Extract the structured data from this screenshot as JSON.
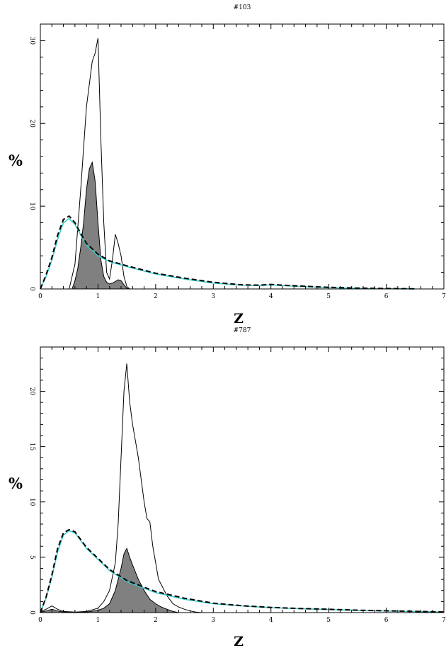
{
  "colors": {
    "dashed_curve": "#000000",
    "cyan_curve": "#33cccc",
    "filled_area": "#808080",
    "thin_curve": "#000000"
  },
  "chart_data": [
    {
      "type": "area",
      "title": "#103",
      "xlabel": "z",
      "ylabel": "%",
      "xlim": [
        0,
        7
      ],
      "ylim": [
        0,
        32
      ],
      "xticks": [
        0,
        1,
        2,
        3,
        4,
        5,
        6,
        7
      ],
      "xtick_labels": [
        "0",
        "1",
        "2",
        "3",
        "4",
        "5",
        "6",
        "7"
      ],
      "yticks": [
        0,
        10,
        20,
        30
      ],
      "ytick_labels": [
        "0",
        "10",
        "20",
        "30"
      ],
      "grid": false,
      "series": [
        {
          "style": "thin-line",
          "x": [
            0.5,
            0.6,
            0.7,
            0.8,
            0.9,
            0.95,
            1.0,
            1.05,
            1.1,
            1.15,
            1.2,
            1.25,
            1.3,
            1.35,
            1.4,
            1.45,
            1.5,
            1.55
          ],
          "y": [
            0,
            3,
            12,
            22,
            27.5,
            28.5,
            30.3,
            18,
            8,
            2,
            1.2,
            3.5,
            6.6,
            5.5,
            4,
            1.5,
            0.3,
            0
          ]
        },
        {
          "style": "filled-area",
          "x": [
            0.55,
            0.6,
            0.65,
            0.7,
            0.75,
            0.8,
            0.85,
            0.9,
            0.95,
            1.0,
            1.05,
            1.1,
            1.15,
            1.2,
            1.25,
            1.3,
            1.35,
            1.4,
            1.45,
            1.5,
            1.55
          ],
          "y": [
            0,
            1,
            2.5,
            5,
            8,
            12,
            14.5,
            15.3,
            13,
            8,
            3.5,
            1.5,
            0.8,
            0.6,
            0.7,
            0.9,
            1.1,
            1.0,
            0.5,
            0.1,
            0
          ]
        },
        {
          "style": "cyan-line",
          "x": [
            0,
            0.1,
            0.2,
            0.3,
            0.4,
            0.5,
            0.6,
            0.7,
            0.8,
            1.0,
            1.2,
            1.5,
            2.0,
            2.5,
            3.0,
            3.5,
            3.8,
            4.0,
            4.2,
            4.5,
            5.0,
            5.5,
            6.0,
            6.5
          ],
          "y": [
            0,
            1.5,
            3.5,
            6,
            8,
            8.5,
            7.8,
            6.5,
            5.3,
            4,
            3.3,
            2.7,
            1.8,
            1.2,
            0.7,
            0.45,
            0.4,
            0.5,
            0.4,
            0.3,
            0.15,
            0.08,
            0.03,
            0.01
          ]
        },
        {
          "style": "dashed-line",
          "x": [
            0,
            0.1,
            0.2,
            0.3,
            0.4,
            0.5,
            0.6,
            0.7,
            0.8,
            1.0,
            1.2,
            1.5,
            2.0,
            2.5,
            3.0,
            3.5,
            3.8,
            4.0,
            4.2,
            4.5,
            5.0,
            5.5,
            6.0,
            6.5
          ],
          "y": [
            0,
            1.7,
            3.8,
            6.5,
            8.4,
            8.8,
            8.0,
            6.7,
            5.5,
            4.2,
            3.4,
            2.8,
            1.9,
            1.3,
            0.8,
            0.5,
            0.45,
            0.55,
            0.45,
            0.35,
            0.2,
            0.1,
            0.05,
            0.02
          ]
        }
      ]
    },
    {
      "type": "area",
      "title": "#787",
      "xlabel": "z",
      "ylabel": "%",
      "xlim": [
        0,
        7
      ],
      "ylim": [
        0,
        24
      ],
      "xticks": [
        0,
        1,
        2,
        3,
        4,
        5,
        6,
        7
      ],
      "xtick_labels": [
        "0",
        "1",
        "2",
        "3",
        "4",
        "5",
        "6",
        "7"
      ],
      "yticks": [
        0,
        5,
        10,
        15,
        20
      ],
      "ytick_labels": [
        "0",
        "5",
        "10",
        "15",
        "20"
      ],
      "grid": false,
      "series": [
        {
          "style": "thin-line",
          "x": [
            0,
            0.1,
            0.2,
            0.3,
            0.4,
            0.6,
            0.8,
            1.0,
            1.1,
            1.2,
            1.3,
            1.35,
            1.4,
            1.45,
            1.5,
            1.55,
            1.6,
            1.7,
            1.8,
            1.85,
            1.9,
            1.95,
            2.0,
            2.05,
            2.1,
            2.2,
            2.3,
            2.4,
            2.5,
            2.6,
            2.7,
            2.8
          ],
          "y": [
            0.1,
            0.3,
            0.6,
            0.3,
            0.1,
            0.05,
            0.1,
            0.4,
            1.0,
            2.0,
            4.5,
            8,
            14,
            20,
            22.5,
            19,
            17,
            14,
            10,
            8.5,
            8.2,
            6,
            4.5,
            3,
            2.5,
            1.5,
            0.8,
            0.5,
            0.3,
            0.15,
            0.05,
            0
          ]
        },
        {
          "style": "filled-area",
          "x": [
            0,
            0.1,
            0.2,
            0.3,
            0.4,
            0.6,
            0.8,
            1.0,
            1.1,
            1.2,
            1.3,
            1.4,
            1.45,
            1.5,
            1.55,
            1.6,
            1.7,
            1.8,
            1.9,
            2.0,
            2.1,
            2.2,
            2.3,
            2.4
          ],
          "y": [
            0.05,
            0.15,
            0.3,
            0.15,
            0.05,
            0.02,
            0.05,
            0.2,
            0.4,
            0.8,
            2.0,
            4.0,
            5.3,
            5.8,
            5.0,
            4.3,
            3.0,
            2.0,
            1.2,
            0.8,
            0.5,
            0.3,
            0.1,
            0
          ]
        },
        {
          "style": "cyan-line",
          "x": [
            0,
            0.1,
            0.2,
            0.3,
            0.4,
            0.5,
            0.6,
            0.7,
            0.8,
            1.0,
            1.2,
            1.5,
            2.0,
            2.5,
            3.0,
            3.5,
            4.0,
            4.5,
            5.0,
            5.5,
            6.0,
            6.5,
            7.0
          ],
          "y": [
            0,
            1.3,
            3.2,
            5.5,
            7.0,
            7.4,
            7.2,
            6.5,
            5.8,
            4.8,
            3.8,
            2.8,
            1.8,
            1.2,
            0.8,
            0.6,
            0.45,
            0.35,
            0.28,
            0.2,
            0.15,
            0.1,
            0.05
          ]
        },
        {
          "style": "dashed-line",
          "x": [
            0,
            0.1,
            0.2,
            0.3,
            0.4,
            0.5,
            0.6,
            0.7,
            0.8,
            1.0,
            1.2,
            1.5,
            2.0,
            2.5,
            3.0,
            3.5,
            4.0,
            4.5,
            5.0,
            5.5,
            6.0,
            6.5,
            7.0
          ],
          "y": [
            0,
            1.4,
            3.4,
            5.8,
            7.2,
            7.5,
            7.3,
            6.6,
            5.9,
            4.9,
            3.9,
            2.9,
            1.9,
            1.3,
            0.85,
            0.62,
            0.47,
            0.37,
            0.3,
            0.22,
            0.16,
            0.11,
            0.06
          ]
        }
      ]
    }
  ]
}
